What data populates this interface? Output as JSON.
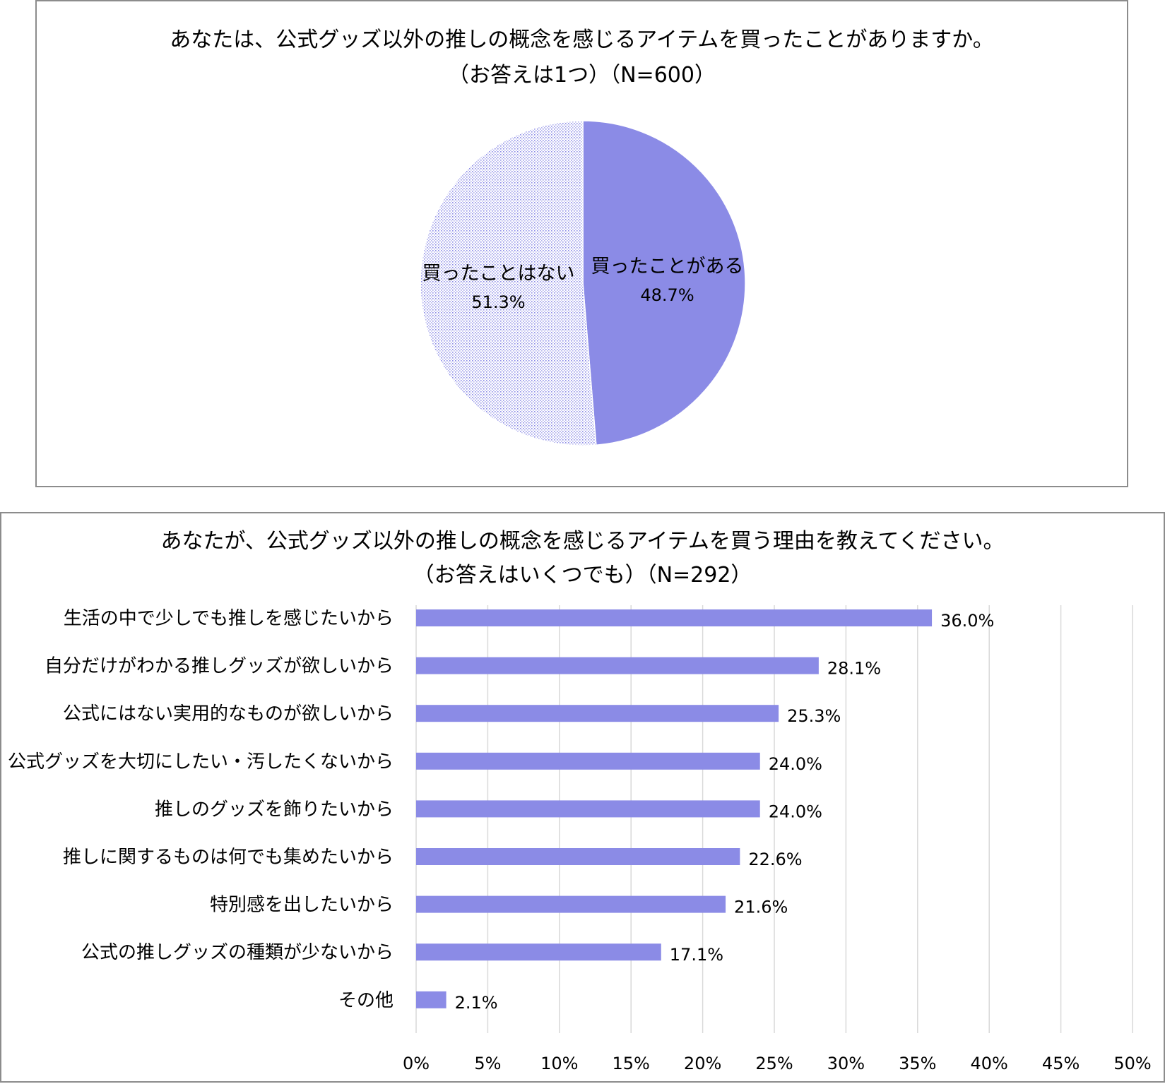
{
  "chart_data": [
    {
      "type": "pie",
      "title": "あなたは、公式グッズ以外の推しの概念を感じるアイテムを買ったことがありますか。",
      "subtitle": "（お答えは1つ）（N=600）",
      "slices": [
        {
          "label": "買ったことがある",
          "value": 48.7,
          "value_label": "48.7%",
          "color": "#8b8be6",
          "fill": "solid"
        },
        {
          "label": "買ったことはない",
          "value": 51.3,
          "value_label": "51.3%",
          "color": "#8b8be6",
          "fill": "dotted"
        }
      ],
      "start_angle": "12 o'clock",
      "direction": "clockwise"
    },
    {
      "type": "bar",
      "orientation": "horizontal",
      "title": "あなたが、公式グッズ以外の推しの概念を感じるアイテムを買う理由を教えてください。",
      "subtitle": "（お答えはいくつでも）（N=292）",
      "categories": [
        "生活の中で少しでも推しを感じたいから",
        "自分だけがわかる推しグッズが欲しいから",
        "公式にはない実用的なものが欲しいから",
        "公式グッズを大切にしたい・汚したくないから",
        "推しのグッズを飾りたいから",
        "推しに関するものは何でも集めたいから",
        "特別感を出したいから",
        "公式の推しグッズの種類が少ないから",
        "その他"
      ],
      "values": [
        36.0,
        28.1,
        25.3,
        24.0,
        24.0,
        22.6,
        21.6,
        17.1,
        2.1
      ],
      "value_labels": [
        "36.0%",
        "28.1%",
        "25.3%",
        "24.0%",
        "24.0%",
        "22.6%",
        "21.6%",
        "17.1%",
        "2.1%"
      ],
      "xlim": [
        0,
        50
      ],
      "xticks": [
        0,
        5,
        10,
        15,
        20,
        25,
        30,
        35,
        40,
        45,
        50
      ],
      "xtick_labels": [
        "0%",
        "5%",
        "10%",
        "15%",
        "20%",
        "25%",
        "30%",
        "35%",
        "40%",
        "45%",
        "50%"
      ],
      "grid": "vertical",
      "bar_color": "#8b8be6",
      "grid_color": "#d9d9d9"
    }
  ]
}
